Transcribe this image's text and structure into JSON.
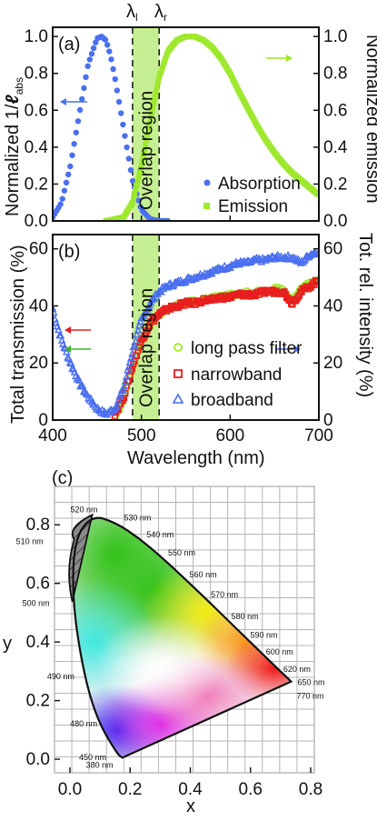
{
  "chart_data": [
    {
      "panel": "(a)",
      "type": "scatter",
      "xlim": [
        400,
        700
      ],
      "ylim_left": [
        0,
        1.05
      ],
      "ylim_right": [
        0,
        1.05
      ],
      "ylabel_left": "Normalized 1/ℓabs",
      "ylabel_left_main": "Normalized 1/",
      "ylabel_left_symbol": "ℓ",
      "ylabel_left_sub": "abs",
      "ylabel_right": "Normalized emission",
      "yticks": [
        "0.0",
        "0.2",
        "0.4",
        "0.6",
        "0.8",
        "1.0"
      ],
      "band_labels": [
        "λl",
        "λr"
      ],
      "band_label_l_main": "λ",
      "band_label_l_sub": "l",
      "band_label_r_main": "λ",
      "band_label_r_sub": "r",
      "overlap_band": [
        490,
        520
      ],
      "overlap_text": "Overlap region",
      "legend": [
        {
          "label": "Absorption",
          "marker": "circle",
          "color": "#4a6ff0"
        },
        {
          "label": "Emission",
          "marker": "square",
          "color": "#9ee82e"
        }
      ],
      "series": [
        {
          "name": "Absorption",
          "color": "#4a6ff0",
          "x": [
            400,
            410,
            420,
            430,
            440,
            450,
            455,
            460,
            465,
            470,
            480,
            490,
            500,
            510,
            520,
            530
          ],
          "y": [
            0.02,
            0.1,
            0.3,
            0.58,
            0.85,
            0.99,
            1.0,
            0.98,
            0.9,
            0.78,
            0.5,
            0.22,
            0.06,
            0.01,
            0.0,
            0.0
          ]
        },
        {
          "name": "Emission",
          "color": "#9ee82e",
          "x": [
            460,
            480,
            490,
            500,
            510,
            520,
            530,
            540,
            550,
            560,
            570,
            580,
            590,
            600,
            610,
            620,
            630,
            640,
            650,
            660,
            670,
            680,
            690,
            700
          ],
          "y": [
            0.0,
            0.02,
            0.1,
            0.3,
            0.55,
            0.78,
            0.92,
            0.98,
            1.0,
            1.0,
            0.98,
            0.94,
            0.88,
            0.8,
            0.7,
            0.61,
            0.52,
            0.44,
            0.37,
            0.31,
            0.26,
            0.22,
            0.18,
            0.14
          ]
        }
      ]
    },
    {
      "panel": "(b)",
      "type": "scatter",
      "xlim": [
        400,
        700
      ],
      "ylim_left": [
        0,
        65
      ],
      "ylabel_left": "Total transmission (%)",
      "ylabel_right": "Tot. rel. intensity (%)",
      "xlabel": "Wavelength (nm)",
      "yticks_left": [
        "0",
        "20",
        "40",
        "60"
      ],
      "yticks_right": [
        "0",
        "20",
        "40",
        "60"
      ],
      "xticks": [
        "400",
        "500",
        "600",
        "700"
      ],
      "overlap_text": "Overlap region",
      "legend": [
        {
          "label": "long pass filter",
          "marker": "circle-open",
          "color": "#9ee82e"
        },
        {
          "label": "narrowband",
          "marker": "square-open",
          "color": "#e81e1e"
        },
        {
          "label": "broadband",
          "marker": "triangle-open",
          "color": "#4a6ff0"
        }
      ],
      "series": [
        {
          "name": "broadband",
          "color": "#4a6ff0",
          "x": [
            400,
            405,
            410,
            415,
            420,
            430,
            440,
            450,
            460,
            470,
            480,
            490,
            500,
            510,
            520,
            530,
            540,
            550,
            560,
            570,
            580,
            590,
            600,
            610,
            620,
            630,
            640,
            650,
            660,
            670,
            680,
            690,
            700
          ],
          "y": [
            39,
            33,
            28,
            24,
            20,
            13,
            8,
            4,
            2,
            4,
            11,
            24,
            35,
            41,
            45,
            47,
            48,
            49,
            50,
            51,
            52,
            53,
            54,
            55,
            55,
            56,
            56,
            57,
            57,
            57,
            55,
            58,
            59
          ]
        },
        {
          "name": "narrowband",
          "color": "#e81e1e",
          "x": [
            470,
            480,
            490,
            500,
            510,
            520,
            530,
            540,
            550,
            560,
            570,
            580,
            590,
            600,
            610,
            620,
            630,
            640,
            650,
            660,
            670,
            680,
            690,
            700
          ],
          "y": [
            2,
            8,
            19,
            28,
            34,
            37,
            39,
            40,
            41,
            41,
            42,
            42,
            43,
            43,
            44,
            44,
            44,
            45,
            45,
            45,
            41,
            45,
            47,
            49
          ]
        },
        {
          "name": "long pass filter",
          "color": "#9ee82e",
          "x": [
            470,
            480,
            490,
            500,
            510,
            520,
            530,
            540,
            550,
            560,
            570,
            580,
            590,
            600,
            610,
            620,
            630,
            640,
            650,
            660,
            670,
            680,
            690,
            700
          ],
          "y": [
            1,
            7,
            18,
            27,
            33,
            37,
            39,
            40,
            41,
            42,
            42,
            43,
            43,
            44,
            44,
            45,
            45,
            45,
            46,
            46,
            42,
            46,
            48,
            50
          ]
        }
      ]
    },
    {
      "panel": "(c)",
      "type": "scatter",
      "xlim": [
        0,
        0.8
      ],
      "ylim": [
        0,
        0.9
      ],
      "xlabel": "x",
      "ylabel": "y",
      "xticks": [
        "0.0",
        "0.2",
        "0.4",
        "0.6",
        "0.8"
      ],
      "yticks": [
        "0.0",
        "0.2",
        "0.4",
        "0.6",
        "0.8"
      ],
      "locus": [
        {
          "label": "380 nm",
          "x": 0.174,
          "y": 0.005
        },
        {
          "label": "450 nm",
          "x": 0.157,
          "y": 0.018
        },
        {
          "label": "480 nm",
          "x": 0.091,
          "y": 0.133
        },
        {
          "label": "490 nm",
          "x": 0.045,
          "y": 0.295
        },
        {
          "label": "500 nm",
          "x": 0.008,
          "y": 0.538
        },
        {
          "label": "510 nm",
          "x": 0.014,
          "y": 0.75
        },
        {
          "label": "520 nm",
          "x": 0.074,
          "y": 0.834
        },
        {
          "label": "530 nm",
          "x": 0.155,
          "y": 0.806
        },
        {
          "label": "540 nm",
          "x": 0.23,
          "y": 0.754
        },
        {
          "label": "550 nm",
          "x": 0.302,
          "y": 0.692
        },
        {
          "label": "560 nm",
          "x": 0.373,
          "y": 0.624
        },
        {
          "label": "570 nm",
          "x": 0.444,
          "y": 0.555
        },
        {
          "label": "580 nm",
          "x": 0.512,
          "y": 0.487
        },
        {
          "label": "590 nm",
          "x": 0.575,
          "y": 0.424
        },
        {
          "label": "600 nm",
          "x": 0.627,
          "y": 0.372
        },
        {
          "label": "620 nm",
          "x": 0.691,
          "y": 0.308
        },
        {
          "label": "650 nm",
          "x": 0.726,
          "y": 0.274
        },
        {
          "label": "770 nm",
          "x": 0.735,
          "y": 0.265
        }
      ],
      "hatched_region": "excluded 500-520 nm wedge"
    }
  ]
}
